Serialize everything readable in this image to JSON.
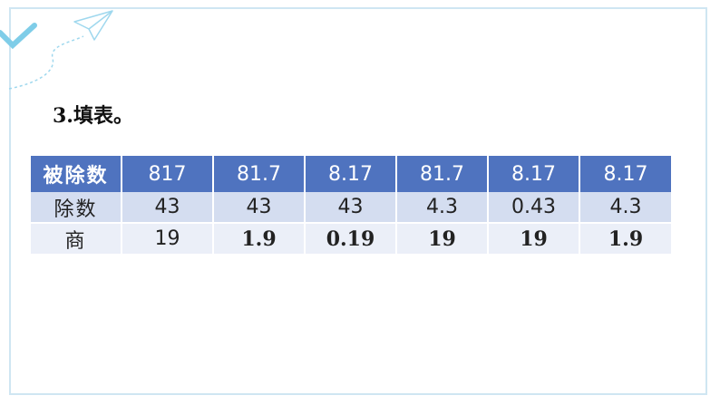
{
  "heading": "3.填表。",
  "table": {
    "row_labels": {
      "dividend": "被除数",
      "divisor": "除数",
      "quotient": "商"
    },
    "dividends": [
      "817",
      "81.7",
      "8.17",
      "81.7",
      "8.17",
      "8.17"
    ],
    "divisors": [
      "43",
      "43",
      "43",
      "4.3",
      "0.43",
      "4.3"
    ],
    "quotients": [
      "19",
      "1.9",
      "0.19",
      "19",
      "19",
      "1.9"
    ]
  },
  "colors": {
    "header_fill": "#4f73bf",
    "divisor_fill": "#d4ddf0",
    "quotient_fill": "#ebeff8",
    "answer_text": "#e00000"
  },
  "icons": [
    "paper-plane-icon",
    "check-mark-icon"
  ]
}
